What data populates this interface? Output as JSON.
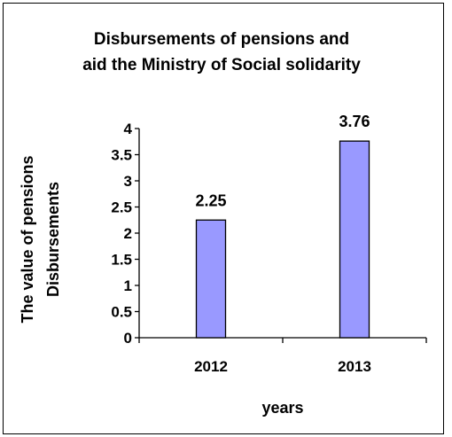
{
  "chart_data": {
    "type": "bar",
    "title_lines": [
      "Disbursements of pensions and",
      "aid the Ministry of Social solidarity"
    ],
    "ylabel_lines": [
      "The value of pensions",
      "Disbursements"
    ],
    "xlabel": "years",
    "categories": [
      "2012",
      "2013"
    ],
    "values": [
      2.25,
      3.76
    ],
    "data_labels": [
      "2.25",
      "3.76"
    ],
    "ylim": [
      0,
      4
    ],
    "yticks": [
      0,
      0.5,
      1,
      1.5,
      2,
      2.5,
      3,
      3.5,
      4
    ],
    "ytick_labels": [
      "0",
      "0.5",
      "1",
      "1.5",
      "2",
      "2.5",
      "3",
      "3.5",
      "4"
    ],
    "bar_color": "#9999FF",
    "grid": false,
    "legend": "none"
  }
}
